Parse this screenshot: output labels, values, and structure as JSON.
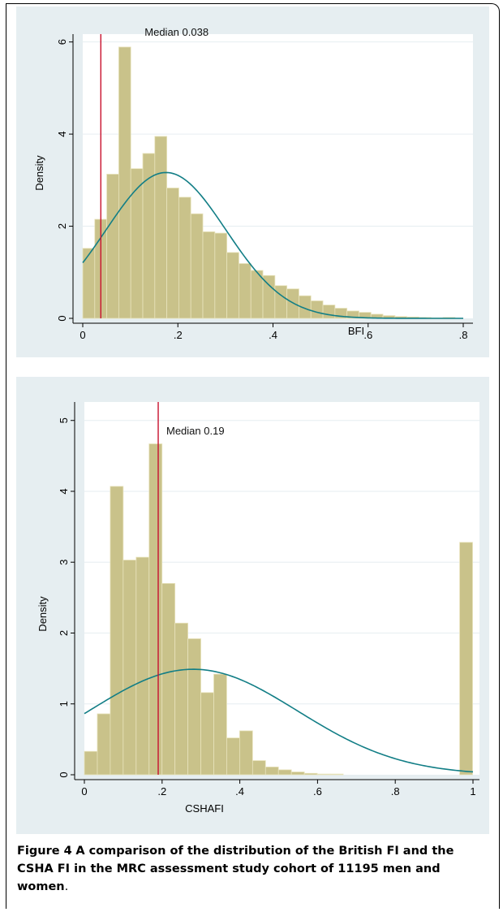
{
  "chart_data": [
    {
      "type": "bar",
      "subtype": "histogram_with_density_curve",
      "ylabel": "Density",
      "xlabel": "BFI",
      "xticks": [
        "0",
        ".2",
        ".4",
        ".6",
        ".8"
      ],
      "yticks": [
        "0",
        "2",
        "4",
        "6"
      ],
      "xlim": [
        0,
        0.8
      ],
      "ylim": [
        0,
        6.1
      ],
      "bin_width": 0.02525,
      "bins_start": 0,
      "values": [
        1.52,
        2.15,
        3.13,
        5.89,
        3.25,
        3.58,
        3.95,
        2.83,
        2.63,
        2.27,
        1.88,
        1.85,
        1.43,
        1.19,
        1.04,
        0.93,
        0.71,
        0.64,
        0.49,
        0.38,
        0.29,
        0.22,
        0.16,
        0.13,
        0.09,
        0.06,
        0.04,
        0.03,
        0.02,
        0.01,
        0.02
      ],
      "normal_curve": {
        "mean": 0.175,
        "sd": 0.126
      },
      "median_line": {
        "x": 0.038,
        "label": "Median 0.038"
      },
      "grid": true,
      "colors": {
        "bars": "#c9c28a",
        "bar_edge": "#e8e3bc",
        "curve": "#127e86",
        "median": "#c8102e",
        "panel": "#e6eef1",
        "plot_bg": "#ffffff",
        "grid": "#e6eef1"
      }
    },
    {
      "type": "bar",
      "subtype": "histogram_with_density_curve",
      "ylabel": "Density",
      "xlabel": "CSHAFI",
      "xticks": [
        "0",
        ".2",
        ".4",
        ".6",
        ".8",
        "1"
      ],
      "yticks": [
        "0",
        "1",
        "2",
        "3",
        "4",
        "5"
      ],
      "xlim": [
        0,
        1
      ],
      "ylim": [
        0,
        5.1
      ],
      "bin_width": 0.0333,
      "bins_start": 0,
      "values": [
        0.33,
        0.86,
        4.07,
        3.03,
        3.07,
        4.67,
        2.7,
        2.14,
        1.92,
        1.16,
        1.42,
        0.52,
        0.62,
        0.2,
        0.11,
        0.07,
        0.04,
        0.02,
        0.01,
        0.01,
        0,
        0,
        0,
        0,
        0,
        0,
        0,
        0,
        0,
        3.28
      ],
      "normal_curve": {
        "mean": 0.28,
        "sd": 0.268
      },
      "median_line": {
        "x": 0.19,
        "label": "Median 0.19"
      },
      "grid": true,
      "colors": {
        "bars": "#c9c28a",
        "bar_edge": "#e8e3bc",
        "curve": "#127e86",
        "median": "#c8102e",
        "panel": "#e6eef1",
        "plot_bg": "#ffffff",
        "grid": "#e6eef1"
      }
    }
  ],
  "caption": {
    "figure_label": "Figure 4",
    "text": "A comparison of the distribution of the British FI and the CSHA FI in the MRC assessment study cohort of 11195 men and women",
    "end": "."
  }
}
